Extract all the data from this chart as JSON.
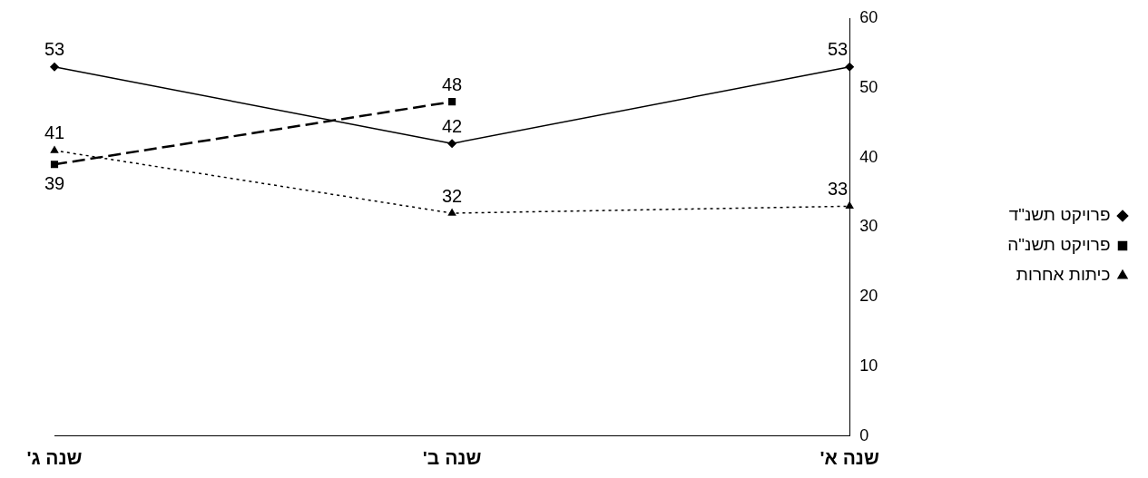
{
  "chart_data": {
    "type": "line",
    "categories": [
      "שנה ג'",
      "שנה ב'",
      "שנה א'"
    ],
    "series": [
      {
        "name": "פרויקט תשנ\"ד",
        "color": "#000000",
        "values": [
          53,
          42,
          53
        ],
        "marker": "diamond",
        "line_style": "solid"
      },
      {
        "name": "פרויקט תשנ\"ה",
        "color": "#000000",
        "values": [
          39,
          48,
          null
        ],
        "marker": "square",
        "line_style": "dashed"
      },
      {
        "name": "כיתות אחרות",
        "color": "#000000",
        "values": [
          41,
          32,
          33
        ],
        "marker": "triangle",
        "line_style": "dotted"
      }
    ],
    "ylim": [
      0,
      60
    ],
    "yticks": [
      0,
      10,
      20,
      30,
      40,
      50,
      60
    ],
    "grid": false,
    "legend": "right",
    "data_labels": true
  }
}
